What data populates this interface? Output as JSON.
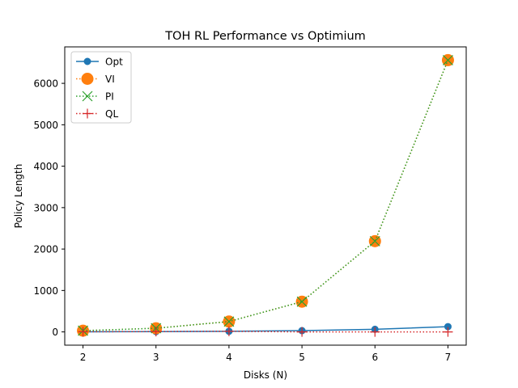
{
  "chart_data": {
    "type": "line",
    "title": "TOH RL Performance vs Optimium",
    "xlabel": "Disks (N)",
    "ylabel": "Policy Length",
    "x": [
      2,
      3,
      4,
      5,
      6,
      7
    ],
    "xlim": [
      1.75,
      7.25
    ],
    "ylim": [
      -320,
      6880
    ],
    "xticks": [
      2,
      3,
      4,
      5,
      6,
      7
    ],
    "yticks": [
      0,
      1000,
      2000,
      3000,
      4000,
      5000,
      6000
    ],
    "grid": false,
    "legend_position": "top-left",
    "series": [
      {
        "name": "Opt",
        "values": [
          3,
          7,
          15,
          31,
          63,
          127
        ],
        "color": "#1f77b4",
        "line_style": "solid",
        "marker": "circle"
      },
      {
        "name": "VI",
        "values": [
          30,
          88,
          250,
          730,
          2190,
          6560
        ],
        "color": "#ff7f0e",
        "line_style": "dotted",
        "marker": "big-circle"
      },
      {
        "name": "PI",
        "values": [
          30,
          88,
          250,
          730,
          2190,
          6560
        ],
        "color": "#2ca02c",
        "line_style": "dotted",
        "marker": "x"
      },
      {
        "name": "QL",
        "values": [
          3,
          9,
          15,
          0,
          0,
          0
        ],
        "color": "#d62728",
        "line_style": "dotted",
        "marker": "plus"
      }
    ]
  }
}
